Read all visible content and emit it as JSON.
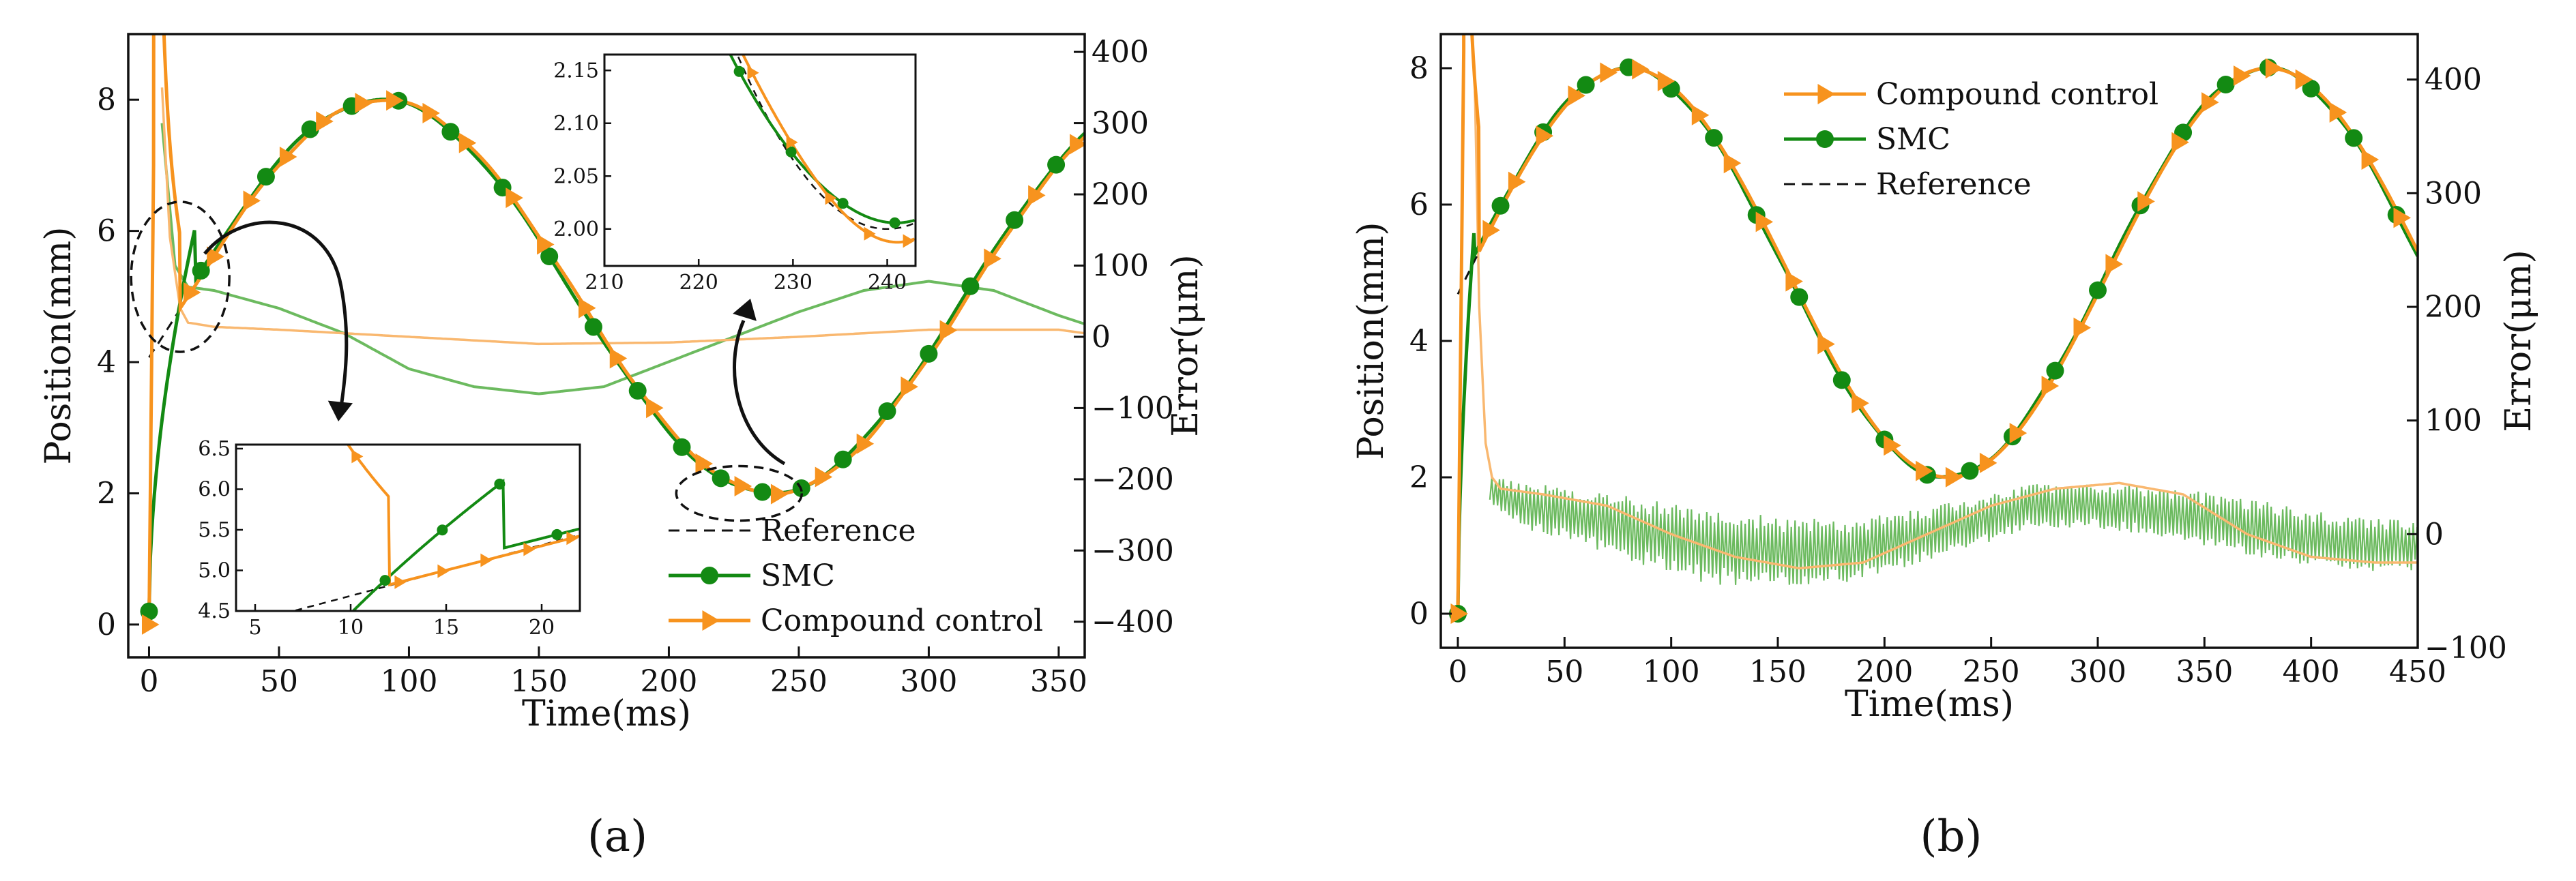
{
  "colors": {
    "smc": "#138a13",
    "compound": "#f7931e",
    "reference": "#111111",
    "smc_error": "#6cba5f",
    "compound_error": "#f9b870"
  },
  "chart_data": [
    {
      "id": "a",
      "caption": "(a)",
      "type": "line",
      "xlabel": "Time(ms)",
      "ylabel": "Position(mm)",
      "y2label": "Error(μm)",
      "xlim": [
        -8,
        360
      ],
      "ylim": [
        -0.5,
        9
      ],
      "y2lim": [
        -450,
        425
      ],
      "xticks": [
        0,
        50,
        100,
        150,
        200,
        250,
        300,
        350
      ],
      "yticks": [
        0,
        2,
        4,
        6,
        8
      ],
      "y2ticks": [
        -400,
        -300,
        -200,
        -100,
        0,
        100,
        200,
        300,
        400
      ],
      "y2ticklabels": [
        "−400",
        "−300",
        "−200",
        "−100",
        "0",
        "100",
        "200",
        "300",
        "400"
      ],
      "legend": {
        "position": "lower-right",
        "entries": [
          "Reference",
          "SMC",
          "Compound control"
        ]
      },
      "series": [
        {
          "name": "Reference",
          "axis": "left",
          "style": "dashed",
          "description": "sinusoid 5 + 3 sin(2π(t-15)/300)"
        },
        {
          "name": "SMC",
          "axis": "left",
          "marker": "circle",
          "markers_x": [
            0,
            20,
            45,
            62,
            78,
            96,
            116,
            136,
            154,
            171,
            188,
            205,
            220,
            236,
            251,
            267,
            284,
            300,
            316,
            333,
            349
          ]
        },
        {
          "name": "Compound control",
          "axis": "left",
          "marker": "triangle-right",
          "markers_x": [
            0,
            16,
            25,
            39,
            53,
            67,
            82,
            94,
            108,
            122,
            140,
            152,
            168,
            180,
            194,
            213,
            228,
            242,
            259,
            275,
            292,
            307,
            324,
            341,
            357
          ]
        },
        {
          "name": "SMC error",
          "axis": "right",
          "x": [
            5,
            10,
            15,
            25,
            50,
            75,
            100,
            125,
            150,
            175,
            200,
            225,
            250,
            275,
            300,
            325,
            350,
            360
          ],
          "y": [
            300,
            100,
            70,
            65,
            40,
            5,
            -45,
            -70,
            -80,
            -70,
            -35,
            0,
            35,
            65,
            78,
            65,
            30,
            18
          ]
        },
        {
          "name": "Compound control error",
          "axis": "right",
          "x": [
            5,
            8,
            12,
            15,
            25,
            50,
            100,
            150,
            200,
            250,
            300,
            350,
            360
          ],
          "y": [
            350,
            140,
            40,
            20,
            14,
            10,
            0,
            -10,
            -8,
            0,
            10,
            10,
            5
          ]
        }
      ],
      "insets": [
        {
          "id": "zoom-start",
          "xlim": [
            4,
            22
          ],
          "ylim": [
            4.5,
            6.55
          ],
          "xticks": [
            5,
            10,
            15,
            20
          ],
          "yticks": [
            4.5,
            5.0,
            5.5,
            6.0,
            6.5
          ],
          "yticklabels": [
            "4.5",
            "5.0",
            "5.5",
            "6.0",
            "6.5"
          ]
        },
        {
          "id": "zoom-minimum",
          "xlim": [
            210,
            243
          ],
          "ylim": [
            1.965,
            2.165
          ],
          "xticks": [
            210,
            220,
            230,
            240
          ],
          "yticks": [
            2.0,
            2.05,
            2.1,
            2.15
          ],
          "yticklabels": [
            "2.00",
            "2.05",
            "2.10",
            "2.15"
          ]
        }
      ]
    },
    {
      "id": "b",
      "caption": "(b)",
      "type": "line",
      "xlabel": "Time(ms)",
      "ylabel": "Position(mm)",
      "y2label": "Error(μm)",
      "xlim": [
        -8,
        450
      ],
      "ylim": [
        -0.5,
        8.5
      ],
      "y2lim": [
        -100,
        440
      ],
      "xticks": [
        0,
        50,
        100,
        150,
        200,
        250,
        300,
        350,
        400,
        450
      ],
      "yticks": [
        0,
        2,
        4,
        6,
        8
      ],
      "y2ticks": [
        -100,
        0,
        100,
        200,
        300,
        400
      ],
      "y2ticklabels": [
        "−100",
        "0",
        "100",
        "200",
        "300",
        "400"
      ],
      "legend": {
        "position": "top-center",
        "entries": [
          "Compound control",
          "SMC",
          "Reference"
        ]
      },
      "series": [
        {
          "name": "Reference",
          "axis": "left",
          "style": "dashed",
          "description": "sinusoid 5 + 3 sin(2π(t-5)/300)"
        },
        {
          "name": "SMC",
          "axis": "left",
          "marker": "circle",
          "markers_x": [
            0,
            20,
            40,
            60,
            80,
            100,
            120,
            140,
            160,
            180,
            200,
            220,
            240,
            260,
            280,
            300,
            320,
            340,
            360,
            380,
            400,
            420,
            440
          ]
        },
        {
          "name": "Compound control",
          "axis": "left",
          "marker": "triangle-right",
          "markers_x": [
            0,
            15,
            27,
            40,
            55,
            70,
            85,
            97,
            113,
            128,
            143,
            157,
            172,
            188,
            203,
            218,
            232,
            248,
            262,
            277,
            292,
            307,
            322,
            338,
            352,
            367,
            382,
            396,
            412,
            427,
            442
          ]
        },
        {
          "name": "SMC error",
          "axis": "right",
          "band": true,
          "x": [
            15,
            30,
            60,
            90,
            120,
            150,
            180,
            210,
            240,
            270,
            300,
            330,
            360,
            390,
            420,
            450
          ],
          "center": [
            40,
            25,
            15,
            0,
            -10,
            -15,
            -15,
            -5,
            10,
            25,
            25,
            20,
            10,
            0,
            -10,
            -10
          ],
          "half_width": [
            12,
            20,
            25,
            30,
            35,
            30,
            28,
            25,
            22,
            20,
            20,
            22,
            25,
            25,
            25,
            22
          ]
        },
        {
          "name": "Compound control error",
          "axis": "right",
          "x": [
            8,
            10,
            13,
            16,
            20,
            40,
            70,
            100,
            130,
            160,
            190,
            220,
            250,
            280,
            310,
            340,
            370,
            400,
            430,
            450
          ],
          "y": [
            390,
            200,
            80,
            50,
            40,
            35,
            25,
            0,
            -20,
            -30,
            -25,
            0,
            25,
            40,
            45,
            35,
            0,
            -20,
            -25,
            -25
          ]
        }
      ]
    }
  ]
}
